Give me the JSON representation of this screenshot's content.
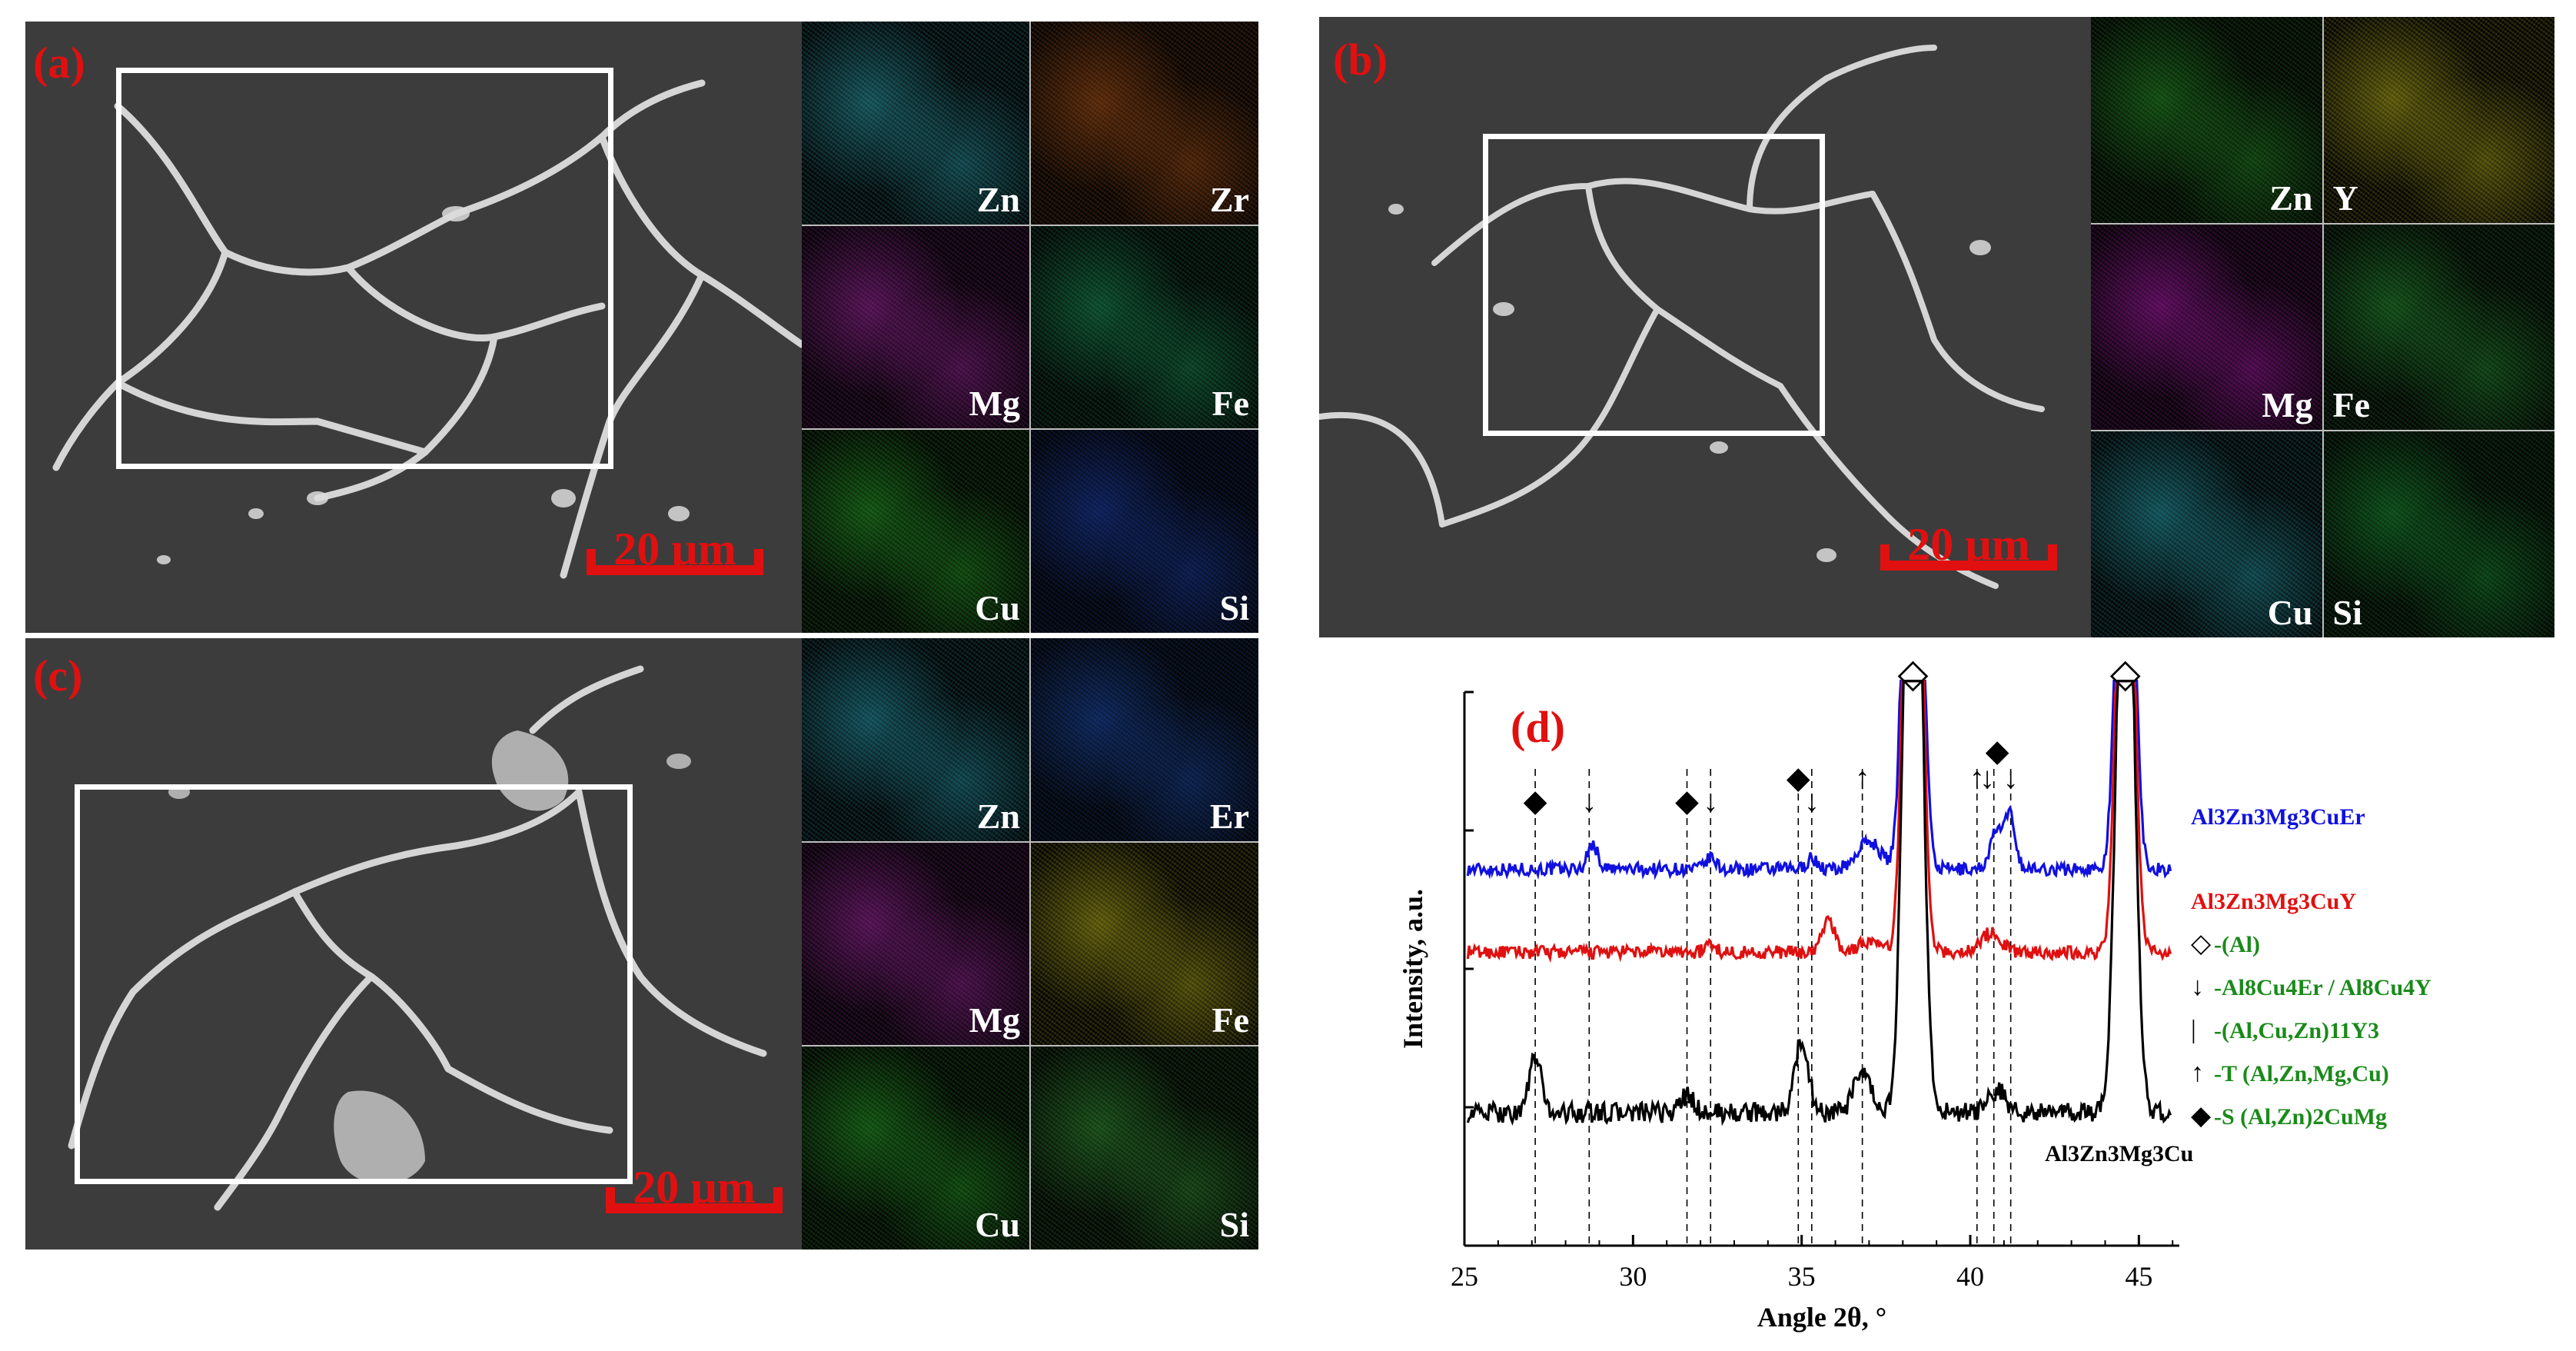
{
  "panels": {
    "a": {
      "label": "(a)",
      "scale_label": "20 µm",
      "maps": [
        {
          "element": "Zn",
          "color": "#37d0e0"
        },
        {
          "element": "Zr",
          "color": "#e06a1a"
        },
        {
          "element": "Mg",
          "color": "#d030d0"
        },
        {
          "element": "Fe",
          "color": "#20c070"
        },
        {
          "element": "Cu",
          "color": "#30d030"
        },
        {
          "element": "Si",
          "color": "#2050e0"
        }
      ]
    },
    "b": {
      "label": "(b)",
      "scale_label": "20 µm",
      "maps": [
        {
          "element": "Zn",
          "color": "#30c030"
        },
        {
          "element": "Y",
          "color": "#e8e020"
        },
        {
          "element": "Mg",
          "color": "#e020e0"
        },
        {
          "element": "Fe",
          "color": "#30c040"
        },
        {
          "element": "Cu",
          "color": "#30d0e0"
        },
        {
          "element": "Si",
          "color": "#20c040"
        }
      ]
    },
    "c": {
      "label": "(c)",
      "scale_label": "20 µm",
      "maps": [
        {
          "element": "Zn",
          "color": "#30c8e0"
        },
        {
          "element": "Er",
          "color": "#2060e0"
        },
        {
          "element": "Mg",
          "color": "#d030d0"
        },
        {
          "element": "Fe",
          "color": "#e8e020"
        },
        {
          "element": "Cu",
          "color": "#30d030"
        },
        {
          "element": "Si",
          "color": "#40c040"
        }
      ]
    }
  },
  "chart_data": {
    "type": "line",
    "panel_label": "(d)",
    "xlabel": "Angle 2θ, °",
    "ylabel": "Intensity, a.u.",
    "xlim": [
      25,
      46.2
    ],
    "x_ticks": [
      25,
      30,
      35,
      40,
      45
    ],
    "series": [
      {
        "name": "Al3Zn3Mg3CuEr",
        "color": "#1010e0",
        "offset": 0.68,
        "baseline_noise": 0.012,
        "peaks": [
          {
            "x": 28.8,
            "h": 0.045,
            "w": 0.15
          },
          {
            "x": 32.3,
            "h": 0.02,
            "w": 0.15
          },
          {
            "x": 35.3,
            "h": 0.02,
            "w": 0.15
          },
          {
            "x": 37.0,
            "h": 0.05,
            "w": 0.35
          },
          {
            "x": 38.3,
            "h": 1.5,
            "w": 0.22
          },
          {
            "x": 40.8,
            "h": 0.07,
            "w": 0.2
          },
          {
            "x": 41.2,
            "h": 0.09,
            "w": 0.15
          },
          {
            "x": 44.6,
            "h": 1.2,
            "w": 0.22
          }
        ]
      },
      {
        "name": "Al3Zn3Mg3CuY",
        "color": "#e01010",
        "offset": 0.53,
        "baseline_noise": 0.012,
        "peaks": [
          {
            "x": 32.3,
            "h": 0.015,
            "w": 0.15
          },
          {
            "x": 35.8,
            "h": 0.06,
            "w": 0.18
          },
          {
            "x": 37.0,
            "h": 0.02,
            "w": 0.3
          },
          {
            "x": 38.3,
            "h": 1.5,
            "w": 0.22
          },
          {
            "x": 40.6,
            "h": 0.035,
            "w": 0.3
          },
          {
            "x": 44.6,
            "h": 1.2,
            "w": 0.22
          }
        ]
      },
      {
        "name": "Al3Zn3Mg3Cu",
        "color": "#000000",
        "offset": 0.24,
        "baseline_noise": 0.018,
        "peaks": [
          {
            "x": 27.1,
            "h": 0.1,
            "w": 0.18
          },
          {
            "x": 31.6,
            "h": 0.03,
            "w": 0.2
          },
          {
            "x": 35.0,
            "h": 0.13,
            "w": 0.2
          },
          {
            "x": 36.8,
            "h": 0.07,
            "w": 0.25
          },
          {
            "x": 38.3,
            "h": 1.6,
            "w": 0.24
          },
          {
            "x": 40.8,
            "h": 0.04,
            "w": 0.25
          },
          {
            "x": 44.6,
            "h": 1.3,
            "w": 0.24
          }
        ]
      }
    ],
    "reference_lines": [
      27.1,
      28.7,
      31.6,
      32.3,
      34.9,
      35.3,
      36.8,
      40.2,
      40.7,
      41.2
    ],
    "markers": [
      {
        "x": 38.3,
        "symbol": "◇",
        "row": "top"
      },
      {
        "x": 44.6,
        "symbol": "◇",
        "row": "top"
      },
      {
        "x": 27.1,
        "symbol": "◆",
        "row": "low"
      },
      {
        "x": 28.7,
        "symbol": "↓",
        "row": "low"
      },
      {
        "x": 31.6,
        "symbol": "◆",
        "row": "low"
      },
      {
        "x": 32.3,
        "symbol": "↓",
        "row": "low"
      },
      {
        "x": 34.9,
        "symbol": "◆",
        "row": "mid"
      },
      {
        "x": 35.3,
        "symbol": "↓",
        "row": "low"
      },
      {
        "x": 36.8,
        "symbol": "↑",
        "row": "mid"
      },
      {
        "x": 40.2,
        "symbol": "↑",
        "row": "mid"
      },
      {
        "x": 40.5,
        "symbol": "↓",
        "row": "mid"
      },
      {
        "x": 40.8,
        "symbol": "◆",
        "row": "high"
      },
      {
        "x": 41.2,
        "symbol": "↓",
        "row": "mid"
      }
    ],
    "legend": [
      {
        "symbol": "◇",
        "text": "-(Al)"
      },
      {
        "symbol": "↓",
        "text": "-Al8Cu4Er / Al8Cu4Y"
      },
      {
        "symbol": "|",
        "text": "-(Al,Cu,Zn)11Y3"
      },
      {
        "symbol": "↑",
        "text": "-T (Al,Zn,Mg,Cu)"
      },
      {
        "symbol": "◆",
        "text": "-S (Al,Zn)2CuMg"
      }
    ]
  }
}
